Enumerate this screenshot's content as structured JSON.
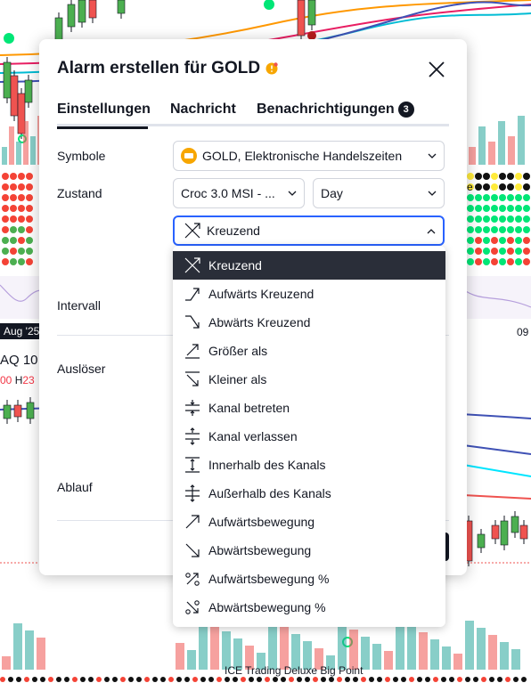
{
  "background": {
    "date_left": "Aug '25",
    "date_right": "09",
    "symbol_text": "AQ 10",
    "ohlc_prefix": "00",
    "ohlc_h_label": "H",
    "ohlc_h_value": "23",
    "footer_text": "ICE Trading Deluxe Big Point",
    "edge_letter": "e"
  },
  "dialog": {
    "title": "Alarm erstellen für GOLD",
    "tabs": [
      {
        "label": "Einstellungen"
      },
      {
        "label": "Nachricht"
      },
      {
        "label": "Benachrichtigungen",
        "badge": "3"
      }
    ],
    "rows": {
      "symbol_label": "Symbole",
      "condition_label": "Zustand",
      "interval_label": "Intervall",
      "trigger_label": "Auslöser",
      "expiry_label": "Ablauf"
    },
    "symbol_value": "GOLD, Elektronische Handelszeiten",
    "indicator_value": "Croc 3.0 MSI - ...",
    "timeframe_value": "Day",
    "operator_value": "Kreuzend"
  },
  "menu": {
    "items": [
      {
        "label": "Kreuzend",
        "icon": "crossing-icon",
        "selected": true
      },
      {
        "label": "Aufwärts Kreuzend",
        "icon": "crossing-up-icon"
      },
      {
        "label": "Abwärts Kreuzend",
        "icon": "crossing-down-icon"
      },
      {
        "label": "Größer als",
        "icon": "greater-than-icon"
      },
      {
        "label": "Kleiner als",
        "icon": "less-than-icon"
      },
      {
        "label": "Kanal betreten",
        "icon": "channel-enter-icon"
      },
      {
        "label": "Kanal verlassen",
        "icon": "channel-exit-icon"
      },
      {
        "label": "Innerhalb des Kanals",
        "icon": "inside-channel-icon"
      },
      {
        "label": "Außerhalb des Kanals",
        "icon": "outside-channel-icon"
      },
      {
        "label": "Aufwärtsbewegung",
        "icon": "moving-up-icon"
      },
      {
        "label": "Abwärtsbewegung",
        "icon": "moving-down-icon"
      },
      {
        "label": "Aufwärtsbewegung %",
        "icon": "moving-up-percent-icon"
      },
      {
        "label": "Abwärtsbewegung %",
        "icon": "moving-down-percent-icon"
      }
    ]
  },
  "colors": {
    "accent": "#2962ff",
    "selected_bg": "#2a2e39",
    "text": "#131722",
    "gold": "#f7a600",
    "bull": "#26a69a",
    "bear": "#ef5350"
  }
}
